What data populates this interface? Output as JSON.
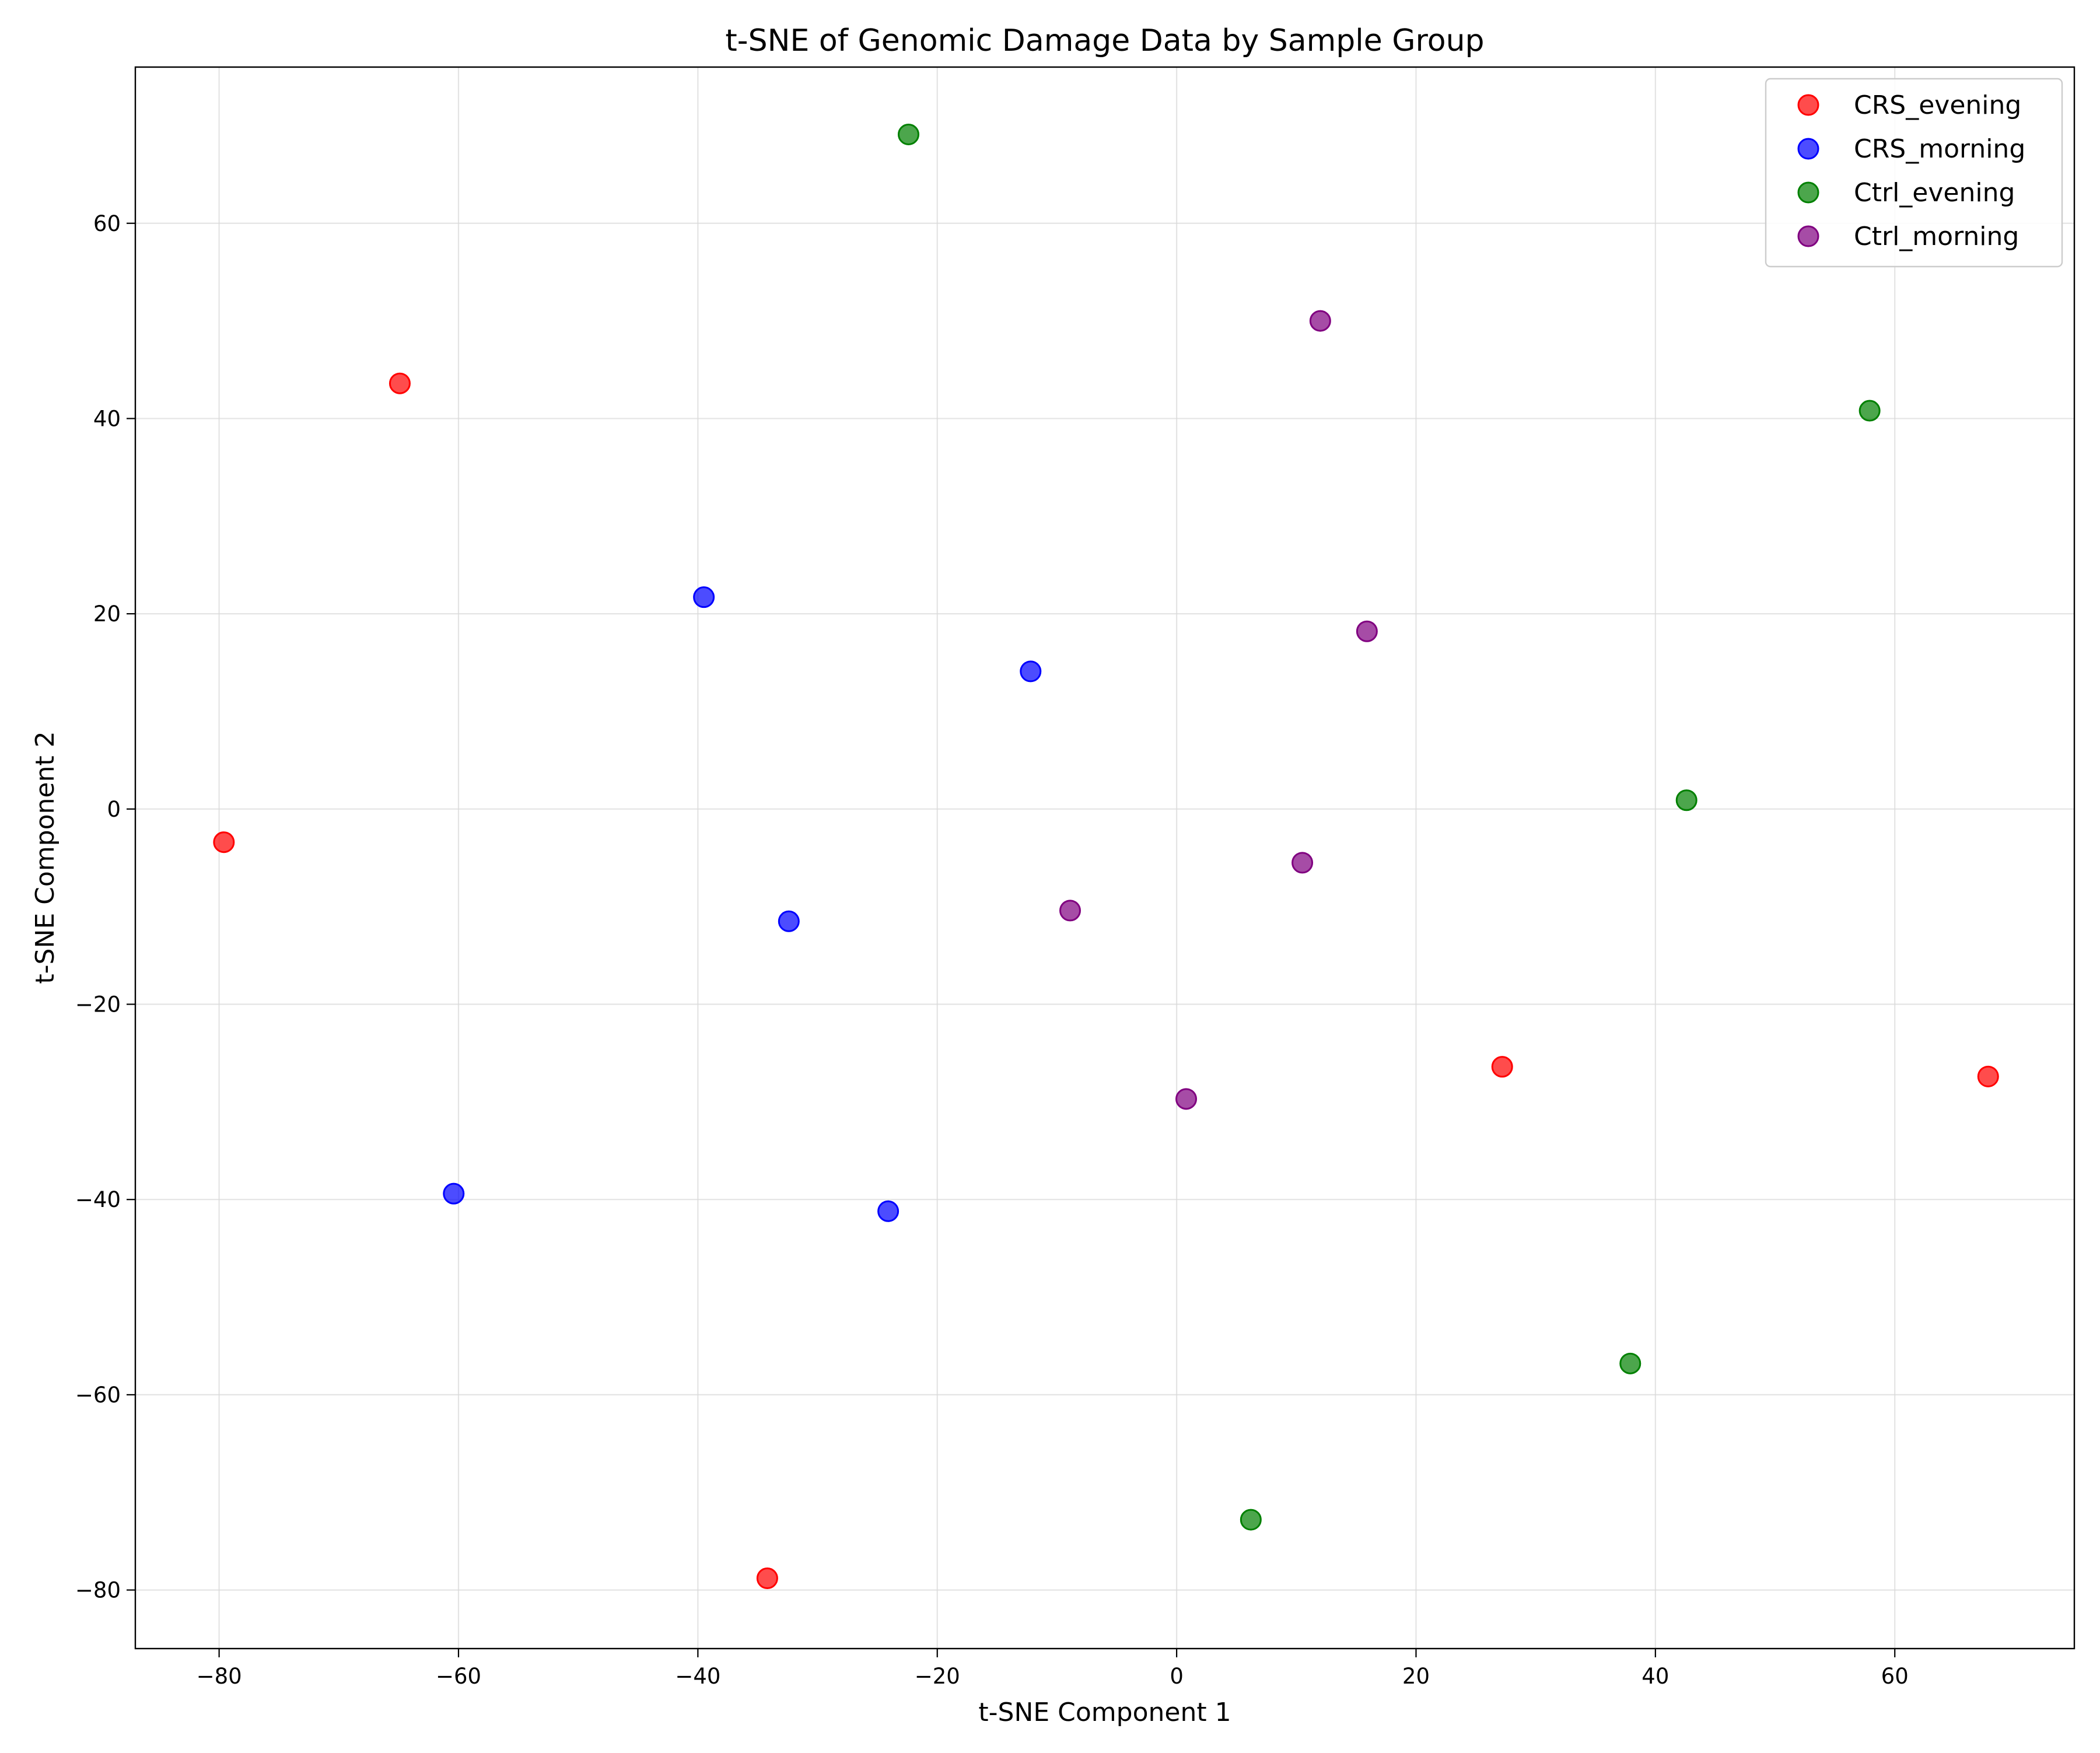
{
  "chart_data": {
    "type": "scatter",
    "title": "t-SNE of Genomic Damage Data by Sample Group",
    "xlabel": "t-SNE Component 1",
    "ylabel": "t-SNE Component 2",
    "xlim": [
      -87,
      75
    ],
    "ylim": [
      -86,
      76
    ],
    "xticks": [
      -80,
      -60,
      -40,
      -20,
      0,
      20,
      40,
      60
    ],
    "yticks": [
      -80,
      -60,
      -40,
      -20,
      0,
      20,
      40,
      60
    ],
    "grid": true,
    "legend_position": "top-right",
    "series": [
      {
        "name": "CRS_evening",
        "color": "#ff0000",
        "points": [
          {
            "x": -64.9,
            "y": 43.6
          },
          {
            "x": -79.6,
            "y": -3.4
          },
          {
            "x": -34.2,
            "y": -78.8
          },
          {
            "x": 27.2,
            "y": -26.4
          },
          {
            "x": 67.8,
            "y": -27.4
          }
        ]
      },
      {
        "name": "CRS_morning",
        "color": "#0000ff",
        "points": [
          {
            "x": -39.5,
            "y": 21.7
          },
          {
            "x": -12.2,
            "y": 14.1
          },
          {
            "x": -32.4,
            "y": -11.5
          },
          {
            "x": -60.4,
            "y": -39.4
          },
          {
            "x": -24.1,
            "y": -41.2
          }
        ]
      },
      {
        "name": "Ctrl_evening",
        "color": "#008000",
        "points": [
          {
            "x": -22.4,
            "y": 69.1
          },
          {
            "x": 57.9,
            "y": 40.8
          },
          {
            "x": 42.6,
            "y": 0.9
          },
          {
            "x": 37.9,
            "y": -56.8
          },
          {
            "x": 6.2,
            "y": -72.8
          }
        ]
      },
      {
        "name": "Ctrl_morning",
        "color": "#800080",
        "points": [
          {
            "x": 12.0,
            "y": 50.0
          },
          {
            "x": 15.9,
            "y": 18.2
          },
          {
            "x": 10.5,
            "y": -5.5
          },
          {
            "x": -8.9,
            "y": -10.4
          },
          {
            "x": 0.8,
            "y": -29.7
          }
        ]
      }
    ]
  }
}
